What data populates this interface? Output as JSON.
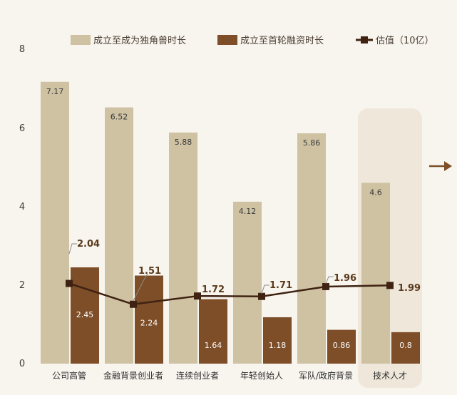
{
  "chart_data": {
    "type": "bar",
    "categories": [
      "公司高管",
      "金融背景创业者",
      "连续创业者",
      "年轻创始人",
      "军队/政府背景",
      "技术人才"
    ],
    "series": [
      {
        "name": "成立至成为独角兽时长",
        "type": "bar",
        "values": [
          7.17,
          6.52,
          5.88,
          4.12,
          5.86,
          4.6
        ],
        "labels": [
          "7.17",
          "6.52",
          "5.88",
          "4.12",
          "5.86",
          "4.6"
        ]
      },
      {
        "name": "成立至首轮融资时长",
        "type": "bar",
        "values": [
          2.45,
          2.24,
          1.64,
          1.18,
          0.86,
          0.8
        ],
        "labels": [
          "2.45",
          "2.24",
          "1.64",
          "1.18",
          "0.86",
          "0.8"
        ]
      },
      {
        "name": "估值（10亿）",
        "type": "line",
        "values": [
          2.04,
          1.51,
          1.72,
          1.71,
          1.96,
          1.99
        ],
        "labels": [
          "2.04",
          "1.51",
          "1.72",
          "1.71",
          "1.96",
          "1.99"
        ]
      }
    ],
    "yticks": [
      "0",
      "2",
      "4",
      "6",
      "8"
    ],
    "ylim": [
      0,
      8
    ],
    "highlighted_category": "技术人才",
    "grid": false,
    "legend_position": "top",
    "colors": {
      "bar_light": "#cfc2a3",
      "bar_dark": "#7d4e28",
      "line": "#3f2212",
      "highlight_bg": "#efe8da",
      "arrow": "#7d4e28",
      "background": "#f8f5ef"
    }
  }
}
